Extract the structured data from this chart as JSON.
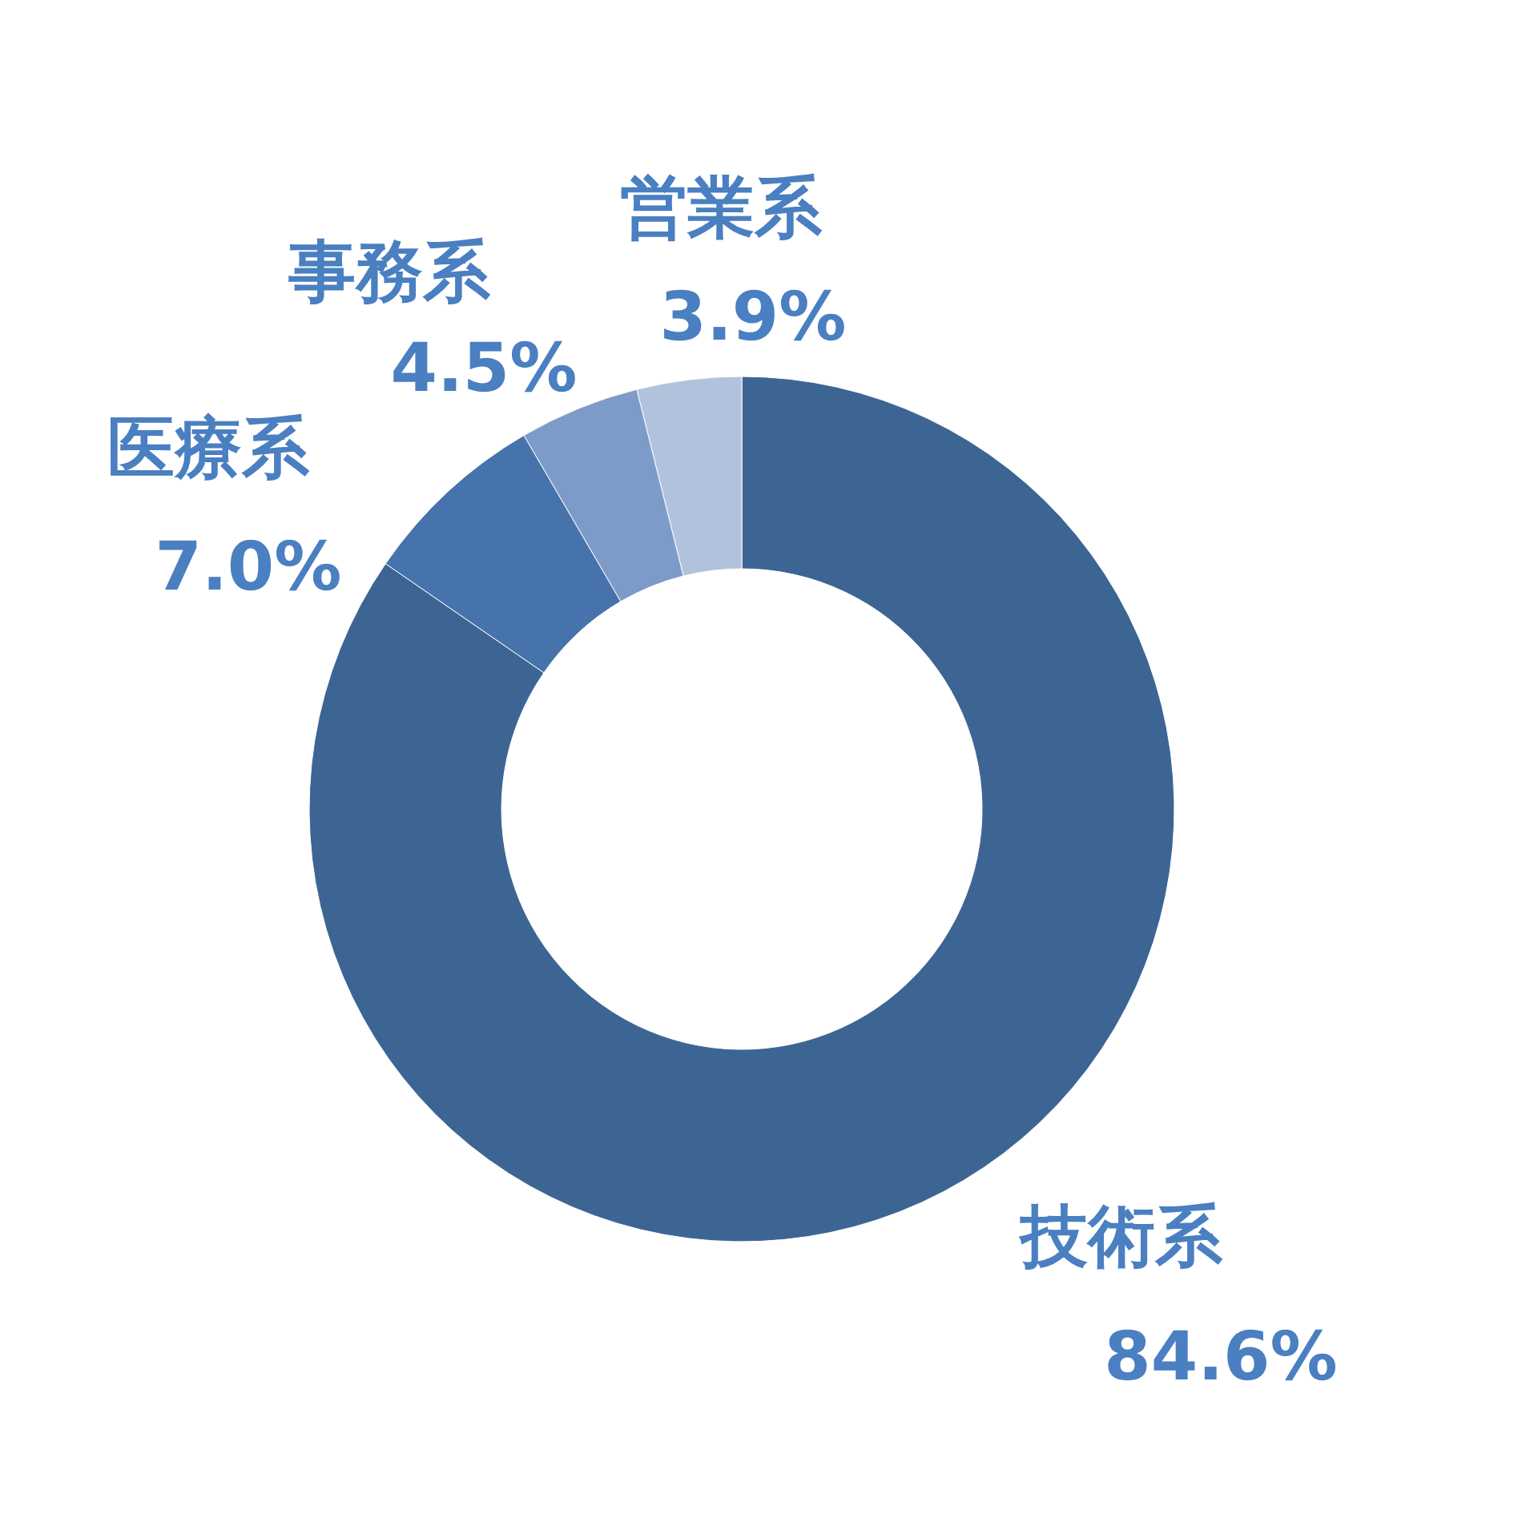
{
  "chart_data": {
    "type": "donut",
    "categories": [
      "技術系",
      "医療系",
      "事務系",
      "営業系"
    ],
    "values": [
      84.6,
      7.0,
      4.5,
      3.9
    ],
    "value_labels": [
      "84.6%",
      "7.0%",
      "4.5%",
      "3.9%"
    ],
    "colors": [
      "#3d6594",
      "#4673ab",
      "#7d9bc8",
      "#b2c2dd"
    ],
    "legend": false
  }
}
